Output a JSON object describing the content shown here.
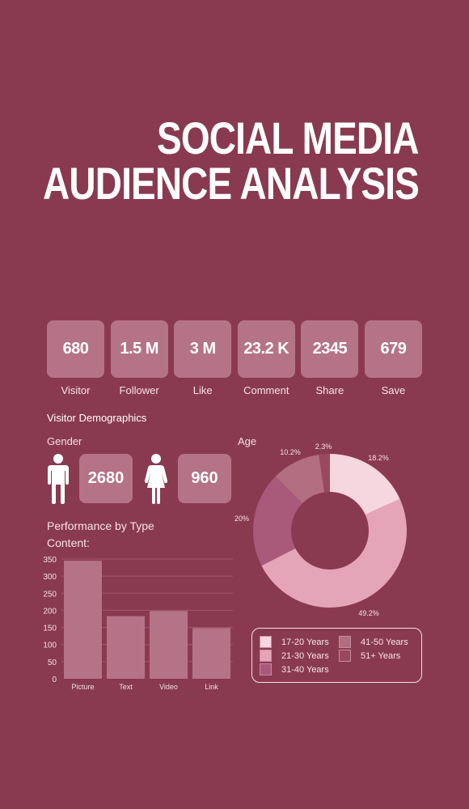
{
  "title": {
    "line1": "SOCIAL MEDIA",
    "line2": "AUDIENCE ANALYSIS"
  },
  "stats": [
    {
      "value": "680",
      "label": "Visitor"
    },
    {
      "value": "1.5 M",
      "label": "Follower"
    },
    {
      "value": "3 M",
      "label": "Like"
    },
    {
      "value": "23.2 K",
      "label": "Comment"
    },
    {
      "value": "2345",
      "label": "Share"
    },
    {
      "value": "679",
      "label": "Save"
    }
  ],
  "demographics": {
    "title": "Visitor Demographics",
    "gender_label": "Gender",
    "age_label": "Age",
    "male_value": "2680",
    "female_value": "960",
    "male_icon": "male-person-icon",
    "female_icon": "female-person-icon"
  },
  "performance": {
    "title_line1": "Performance by Type",
    "title_line2": "Content:"
  },
  "colors": {
    "background": "#8a3a50",
    "box": "#b57388",
    "bar": "#b57388",
    "age_17_20": "#f6d6df",
    "age_21_30": "#e5a5b8",
    "age_31_40": "#a95a7a",
    "age_41_50": "#b36e82",
    "age_51_plus": "#9a4860"
  },
  "chart_data": [
    {
      "type": "bar",
      "title": "Performance by Type Content:",
      "categories": [
        "Picture",
        "Text",
        "Video",
        "Link"
      ],
      "values": [
        345,
        183,
        198,
        148
      ],
      "yticks": [
        0,
        50,
        100,
        150,
        200,
        250,
        300,
        350
      ],
      "ylim": [
        0,
        350
      ],
      "grid": true
    },
    {
      "type": "pie",
      "title": "Age",
      "labels": [
        "17-20 Years",
        "21-30 Years",
        "31-40 Years",
        "41-50 Years",
        "51+ Years"
      ],
      "values": [
        18.2,
        49.2,
        20,
        10.2,
        2.3
      ],
      "value_labels": [
        "18.2%",
        "49.2%",
        "20%",
        "10.2%",
        "2.3%"
      ],
      "donut": true,
      "legend_position": "bottom"
    }
  ]
}
